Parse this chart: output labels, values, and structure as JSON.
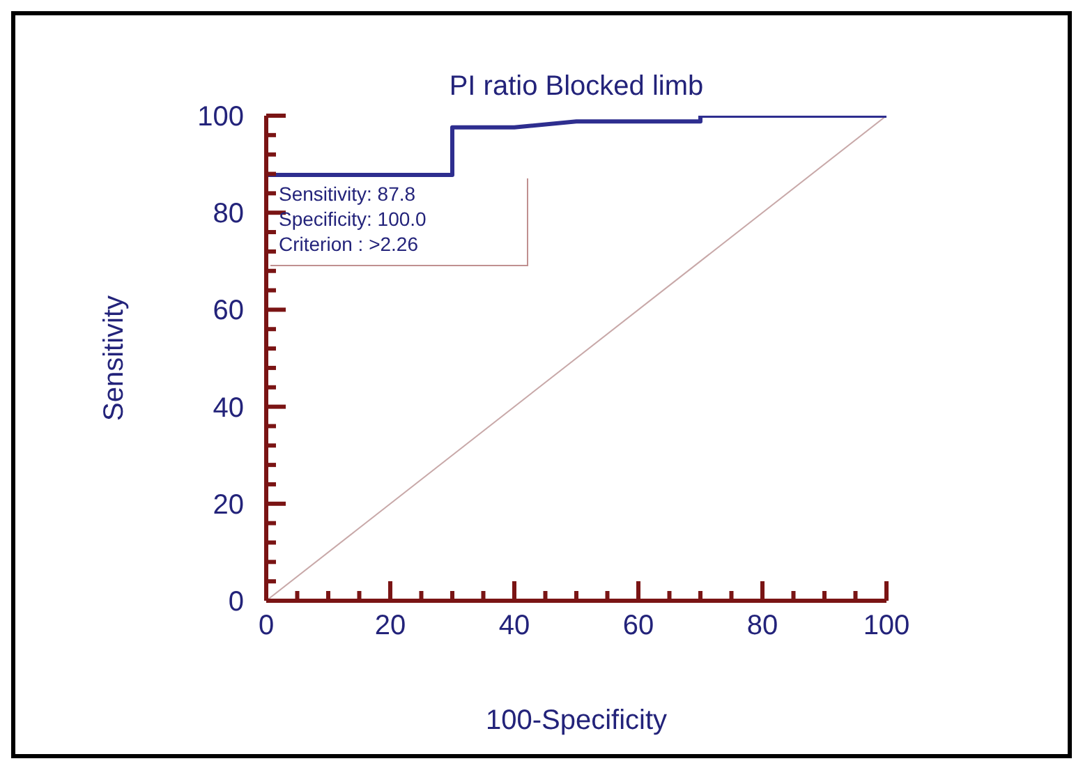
{
  "chart_data": {
    "type": "line",
    "title": "PI ratio Blocked limb",
    "xlabel": "100-Specificity",
    "ylabel": "Sensitivity",
    "xlim": [
      0,
      100
    ],
    "ylim": [
      0,
      100
    ],
    "xticks": [
      0,
      {
        "value": 5,
        "label": null
      },
      {
        "value": 10,
        "label": null
      },
      {
        "value": 15,
        "label": null
      },
      20,
      {
        "value": 25,
        "label": null
      },
      {
        "value": 30,
        "label": null
      },
      {
        "value": 35,
        "label": null
      },
      40,
      {
        "value": 45,
        "label": null
      },
      {
        "value": 50,
        "label": null
      },
      {
        "value": 55,
        "label": null
      },
      60,
      {
        "value": 65,
        "label": null
      },
      {
        "value": 70,
        "label": null
      },
      {
        "value": 75,
        "label": null
      },
      80,
      {
        "value": 85,
        "label": null
      },
      {
        "value": 90,
        "label": null
      },
      {
        "value": 95,
        "label": null
      },
      100
    ],
    "yticks": [
      0,
      {
        "value": 4,
        "label": null
      },
      {
        "value": 8,
        "label": null
      },
      {
        "value": 12,
        "label": null
      },
      {
        "value": 16,
        "label": null
      },
      20,
      {
        "value": 24,
        "label": null
      },
      {
        "value": 28,
        "label": null
      },
      {
        "value": 32,
        "label": null
      },
      {
        "value": 36,
        "label": null
      },
      40,
      {
        "value": 44,
        "label": null
      },
      {
        "value": 48,
        "label": null
      },
      {
        "value": 52,
        "label": null
      },
      {
        "value": 56,
        "label": null
      },
      60,
      {
        "value": 64,
        "label": null
      },
      {
        "value": 68,
        "label": null
      },
      {
        "value": 72,
        "label": null
      },
      {
        "value": 76,
        "label": null
      },
      80,
      {
        "value": 84,
        "label": null
      },
      {
        "value": 88,
        "label": null
      },
      {
        "value": 92,
        "label": null
      },
      {
        "value": 96,
        "label": null
      },
      100
    ],
    "marker": "none",
    "series": [
      {
        "color": "#2e2e8f",
        "x": [
          0,
          0,
          30,
          30,
          40,
          50,
          70,
          70,
          100
        ],
        "values": [
          0,
          87.8,
          87.8,
          97.6,
          97.6,
          98.8,
          98.8,
          100,
          100
        ]
      },
      {
        "color": "#c8a8a8",
        "x": [
          0,
          100
        ],
        "values": [
          0,
          100
        ]
      }
    ],
    "annotations": [
      "Sensitivity: 87.8",
      "Specificity: 100.0",
      "Criterion : >2.26"
    ]
  }
}
